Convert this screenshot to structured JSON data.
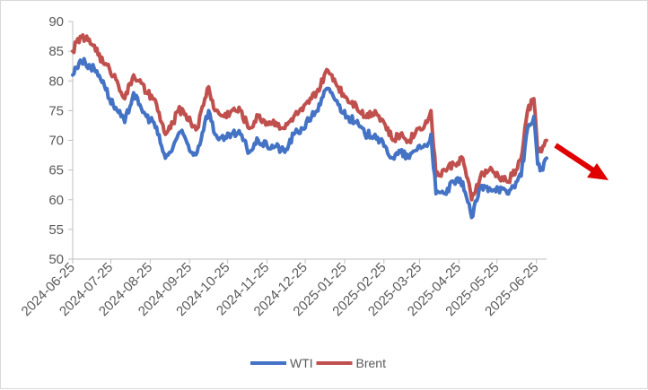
{
  "chart_data": {
    "type": "line",
    "title": "",
    "xlabel": "",
    "ylabel": "",
    "ylim": [
      50,
      90
    ],
    "y_ticks": [
      "50",
      "55",
      "60",
      "65",
      "70",
      "75",
      "80",
      "85",
      "90"
    ],
    "x_ticks": [
      "2024-06-25",
      "2024-07-25",
      "2024-08-25",
      "2024-09-25",
      "2024-10-25",
      "2024-11-25",
      "2024-12-25",
      "2025-01-25",
      "2025-02-25",
      "2025-03-25",
      "2025-04-25",
      "2025-05-25",
      "2025-06-25"
    ],
    "xlim": [
      "2024-06-25",
      "2025-07-03"
    ],
    "grid": false,
    "legend": "bottom",
    "series": [
      {
        "name": "WTI",
        "color": "#4472c4",
        "x": [
          "2024-06-25",
          "2024-07-01",
          "2024-07-05",
          "2024-07-12",
          "2024-07-19",
          "2024-07-24",
          "2024-07-30",
          "2024-08-05",
          "2024-08-12",
          "2024-08-16",
          "2024-08-22",
          "2024-08-28",
          "2024-09-03",
          "2024-09-06",
          "2024-09-10",
          "2024-09-16",
          "2024-09-20",
          "2024-09-26",
          "2024-10-01",
          "2024-10-07",
          "2024-10-10",
          "2024-10-15",
          "2024-10-22",
          "2024-10-28",
          "2024-11-04",
          "2024-11-11",
          "2024-11-18",
          "2024-11-25",
          "2024-12-02",
          "2024-12-09",
          "2024-12-16",
          "2024-12-23",
          "2024-12-30",
          "2025-01-06",
          "2025-01-10",
          "2025-01-15",
          "2025-01-20",
          "2025-01-27",
          "2025-02-03",
          "2025-02-10",
          "2025-02-18",
          "2025-02-25",
          "2025-03-04",
          "2025-03-10",
          "2025-03-17",
          "2025-03-24",
          "2025-03-31",
          "2025-04-03",
          "2025-04-07",
          "2025-04-14",
          "2025-04-21",
          "2025-04-28",
          "2025-05-05",
          "2025-05-12",
          "2025-05-19",
          "2025-05-26",
          "2025-06-02",
          "2025-06-09",
          "2025-06-13",
          "2025-06-18",
          "2025-06-23",
          "2025-06-26",
          "2025-06-30",
          "2025-07-03"
        ],
        "values": [
          81,
          83.5,
          83,
          82,
          80,
          77,
          75,
          73,
          78,
          76,
          74,
          73,
          69,
          67,
          68,
          71,
          71,
          68,
          68,
          73,
          75,
          71,
          70,
          71,
          71,
          68,
          70,
          69,
          69,
          68,
          71,
          72,
          74,
          76,
          78.5,
          78,
          76,
          74,
          73,
          71,
          71,
          69,
          67,
          68,
          67,
          69,
          69,
          71,
          61,
          61,
          63,
          63,
          57,
          62,
          62,
          62,
          61,
          63,
          64,
          72,
          74,
          66,
          65,
          67
        ]
      },
      {
        "name": "Brent",
        "color": "#c0504d",
        "x": [
          "2024-06-25",
          "2024-07-01",
          "2024-07-05",
          "2024-07-12",
          "2024-07-19",
          "2024-07-24",
          "2024-07-30",
          "2024-08-05",
          "2024-08-12",
          "2024-08-16",
          "2024-08-22",
          "2024-08-28",
          "2024-09-03",
          "2024-09-06",
          "2024-09-10",
          "2024-09-16",
          "2024-09-20",
          "2024-09-26",
          "2024-10-01",
          "2024-10-07",
          "2024-10-10",
          "2024-10-15",
          "2024-10-22",
          "2024-10-28",
          "2024-11-04",
          "2024-11-11",
          "2024-11-18",
          "2024-11-25",
          "2024-12-02",
          "2024-12-09",
          "2024-12-16",
          "2024-12-23",
          "2024-12-30",
          "2025-01-06",
          "2025-01-10",
          "2025-01-15",
          "2025-01-20",
          "2025-01-27",
          "2025-02-03",
          "2025-02-10",
          "2025-02-18",
          "2025-02-25",
          "2025-03-04",
          "2025-03-10",
          "2025-03-17",
          "2025-03-24",
          "2025-03-31",
          "2025-04-03",
          "2025-04-07",
          "2025-04-14",
          "2025-04-21",
          "2025-04-28",
          "2025-05-05",
          "2025-05-12",
          "2025-05-19",
          "2025-05-26",
          "2025-06-02",
          "2025-06-09",
          "2025-06-13",
          "2025-06-18",
          "2025-06-23",
          "2025-06-26",
          "2025-06-30",
          "2025-07-03"
        ],
        "values": [
          85,
          87.5,
          87,
          86,
          83,
          82,
          80,
          77,
          81,
          80,
          78,
          77,
          73,
          71,
          72,
          75,
          75,
          73,
          72,
          77,
          79,
          75,
          74,
          75,
          75,
          72,
          74,
          73,
          73,
          72,
          74,
          75,
          77,
          79,
          81.5,
          81,
          79,
          77,
          76,
          74,
          75,
          73,
          70,
          71,
          70,
          72,
          73,
          75,
          64,
          65,
          66,
          67,
          60,
          64,
          65,
          64,
          63,
          65,
          67,
          75,
          77,
          68,
          69,
          70
        ]
      }
    ]
  },
  "annotation": {
    "arrow_color": "#e00000"
  }
}
